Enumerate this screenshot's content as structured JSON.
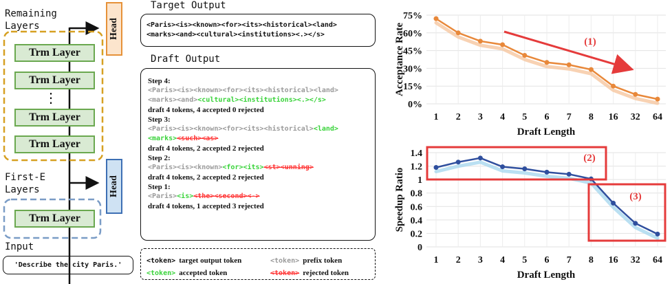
{
  "left": {
    "remaining_label": "Remaining\nLayers",
    "first_label": "First-E\nLayers",
    "input_label": "Input",
    "trm_layer": "Trm Layer",
    "dots": "⋮",
    "head_label": "Head",
    "input_text": "'Describe the city Paris.'"
  },
  "target": {
    "title": "Target Output",
    "line1": "<Paris><is><known><for><its><historical><land>",
    "line2": "<marks><and><cultural><institutions><.></s>"
  },
  "draft": {
    "title": "Draft Output",
    "steps": [
      {
        "label": "Step 4:",
        "l1_gray": "<Paris><is><known><for><its><historical><land>",
        "l2_gray": "<marks><and>",
        "l2_green": "<cultural><institutions><.></s>",
        "summary": "draft 4 tokens, 4 accepted 0 rejected"
      },
      {
        "label": "Step 3:",
        "l1_gray": "<Paris><is><known><for><its><historical>",
        "l1_green": "<land>",
        "l2_green": "<marks>",
        "l2_red": "<such><as>",
        "summary": "draft 4 tokens, 2 accepted 2 rejected"
      },
      {
        "label": "Step 2:",
        "l1_gray": "<Paris><is><known>",
        "l1_green": "<for><its>",
        "l1_red": "<st><unning>",
        "summary": "draft 4 tokens, 2 accepted 2 rejected"
      },
      {
        "label": "Step 1:",
        "l1_gray": "<Paris>",
        "l1_green": "<is>",
        "l1_red": "<the><second><->",
        "summary": "draft 4 tokens, 1 accepted 3 rejected"
      }
    ]
  },
  "legend": {
    "target_tok": "<token>",
    "target_txt": "target output token",
    "prefix_tok": "<token>",
    "prefix_txt": "prefix token",
    "accepted_tok": "<token>",
    "accepted_txt": "accepted token",
    "rejected_tok": "<token>",
    "rejected_txt": "rejected token"
  },
  "colors": {
    "orange": "#e8883a",
    "blue": "#2f4f9e",
    "red": "#e53b3b",
    "green": "#6aa84f"
  },
  "chart_data": [
    {
      "type": "line",
      "categories": [
        "1",
        "2",
        "3",
        "4",
        "5",
        "6",
        "7",
        "8",
        "16",
        "32",
        "64"
      ],
      "values": [
        72,
        60,
        53,
        50,
        41,
        35,
        33,
        29,
        15,
        8,
        4
      ],
      "ylabel": "Acceptance Rate",
      "xlabel": "Draft Length",
      "ytick_labels": [
        "0%",
        "15%",
        "30%",
        "45%",
        "60%",
        "75%"
      ],
      "ylim": [
        0,
        75
      ],
      "annotations": [
        "(1)"
      ],
      "grid": true
    },
    {
      "type": "line",
      "categories": [
        "1",
        "2",
        "3",
        "4",
        "5",
        "6",
        "7",
        "8",
        "16",
        "32",
        "64"
      ],
      "values": [
        1.18,
        1.26,
        1.32,
        1.19,
        1.16,
        1.11,
        1.08,
        1.01,
        0.65,
        0.35,
        0.19
      ],
      "ylabel": "Speedup Ratio",
      "xlabel": "Draft Length",
      "ytick_labels": [
        "0",
        "0.2",
        "0.4",
        "0.6",
        "0.8",
        "1",
        "1.2",
        "1.4"
      ],
      "ylim": [
        0,
        1.4
      ],
      "annotations": [
        "(2)",
        "(3)"
      ],
      "grid": true
    }
  ]
}
